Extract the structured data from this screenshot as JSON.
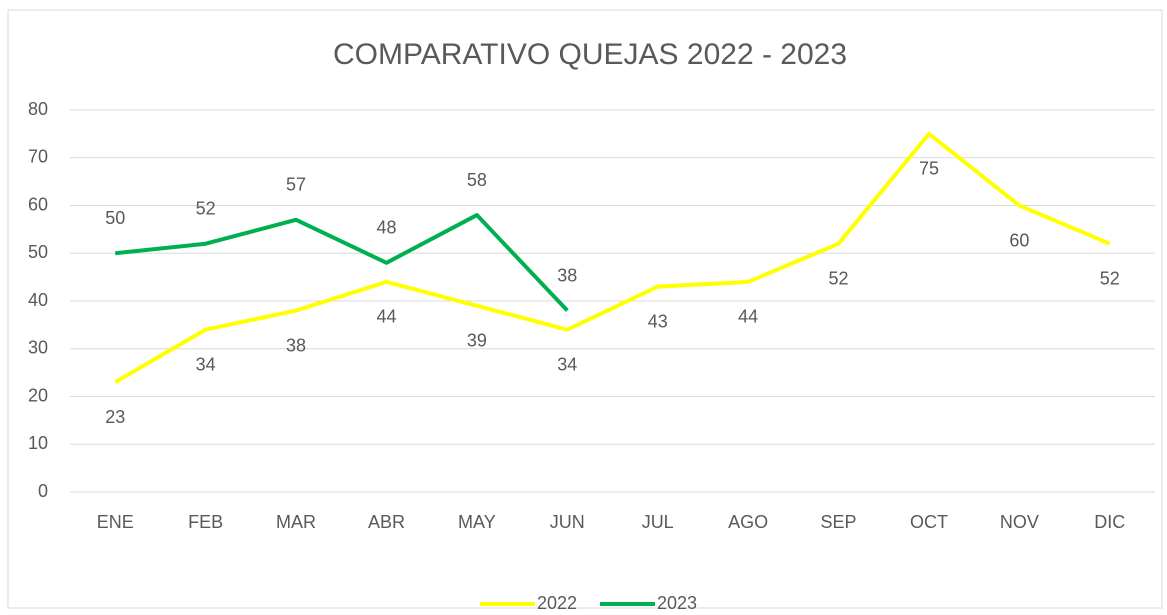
{
  "chart_data": {
    "type": "line",
    "title": "COMPARATIVO QUEJAS 2022 - 2023",
    "categories": [
      "ENE",
      "FEB",
      "MAR",
      "ABR",
      "MAY",
      "JUN",
      "JUL",
      "AGO",
      "SEP",
      "OCT",
      "NOV",
      "DIC"
    ],
    "series": [
      {
        "name": "2022",
        "color": "#ffff00",
        "values": [
          23,
          34,
          38,
          44,
          39,
          34,
          43,
          44,
          52,
          75,
          60,
          52
        ]
      },
      {
        "name": "2023",
        "color": "#00b050",
        "values": [
          50,
          52,
          57,
          48,
          58,
          38,
          null,
          null,
          null,
          null,
          null,
          null
        ]
      }
    ],
    "ylim": [
      0,
      80
    ],
    "yticks": [
      0,
      10,
      20,
      30,
      40,
      50,
      60,
      70,
      80
    ],
    "grid": true,
    "legend": "bottom"
  }
}
